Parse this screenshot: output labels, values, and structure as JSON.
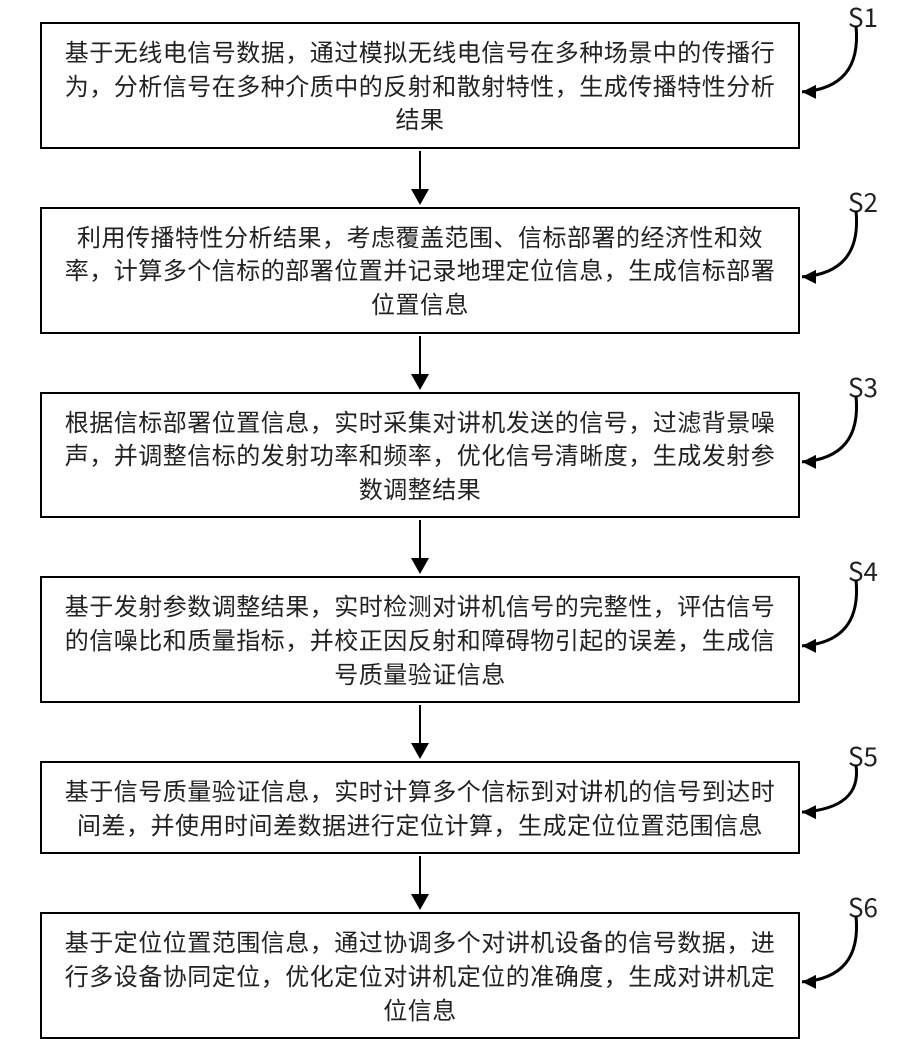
{
  "diagram": {
    "type": "flowchart",
    "background_color": "#ffffff",
    "box_border_color": "#000000",
    "box_border_width": 2,
    "text_color": "#222222",
    "box_fontsize": 24,
    "label_fontsize": 26,
    "arrow_color": "#000000",
    "steps": [
      {
        "id": "S1",
        "text": "基于无线电信号数据，通过模拟无线电信号在多种场景中的传播行为，分析信号在多种介质中的反射和散射特性，生成传播特性分析结果"
      },
      {
        "id": "S2",
        "text": "利用传播特性分析结果，考虑覆盖范围、信标部署的经济性和效率，计算多个信标的部署位置并记录地理定位信息，生成信标部署位置信息"
      },
      {
        "id": "S3",
        "text": "根据信标部署位置信息，实时采集对讲机发送的信号，过滤背景噪声，并调整信标的发射功率和频率，优化信号清晰度，生成发射参数调整结果"
      },
      {
        "id": "S4",
        "text": "基于发射参数调整结果，实时检测对讲机信号的完整性，评估信号的信噪比和质量指标，并校正因反射和障碍物引起的误差，生成信号质量验证信息"
      },
      {
        "id": "S5",
        "text": "基于信号质量验证信息，实时计算多个信标到对讲机的信号到达时间差，并使用时间差数据进行定位计算，生成定位位置范围信息"
      },
      {
        "id": "S6",
        "text": "基于定位位置范围信息，通过协调多个对讲机设备的信号数据，进行多设备协同定位，优化定位对讲机定位的准确度，生成对讲机定位信息"
      }
    ]
  }
}
